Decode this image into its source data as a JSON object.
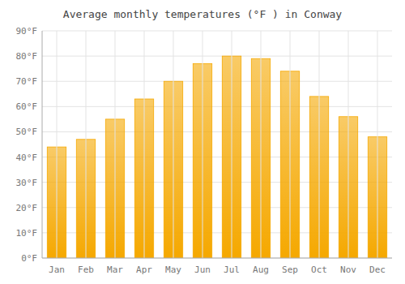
{
  "chart_data": {
    "type": "bar",
    "title": "Average monthly temperatures (°F ) in Conway",
    "categories": [
      "Jan",
      "Feb",
      "Mar",
      "Apr",
      "May",
      "Jun",
      "Jul",
      "Aug",
      "Sep",
      "Oct",
      "Nov",
      "Dec"
    ],
    "values": [
      44,
      47,
      55,
      63,
      70,
      77,
      80,
      79,
      74,
      64,
      56,
      48
    ],
    "color": "#F5A800",
    "ylim": [
      0,
      90
    ],
    "yticks": [
      {
        "value": 0,
        "label": "0°F"
      },
      {
        "value": 10,
        "label": "10°F"
      },
      {
        "value": 20,
        "label": "20°F"
      },
      {
        "value": 30,
        "label": "30°F"
      },
      {
        "value": 40,
        "label": "40°F"
      },
      {
        "value": 50,
        "label": "50°F"
      },
      {
        "value": 60,
        "label": "60°F"
      },
      {
        "value": 70,
        "label": "70°F"
      },
      {
        "value": 80,
        "label": "80°F"
      },
      {
        "value": 90,
        "label": "90°F"
      }
    ],
    "grid": true
  }
}
